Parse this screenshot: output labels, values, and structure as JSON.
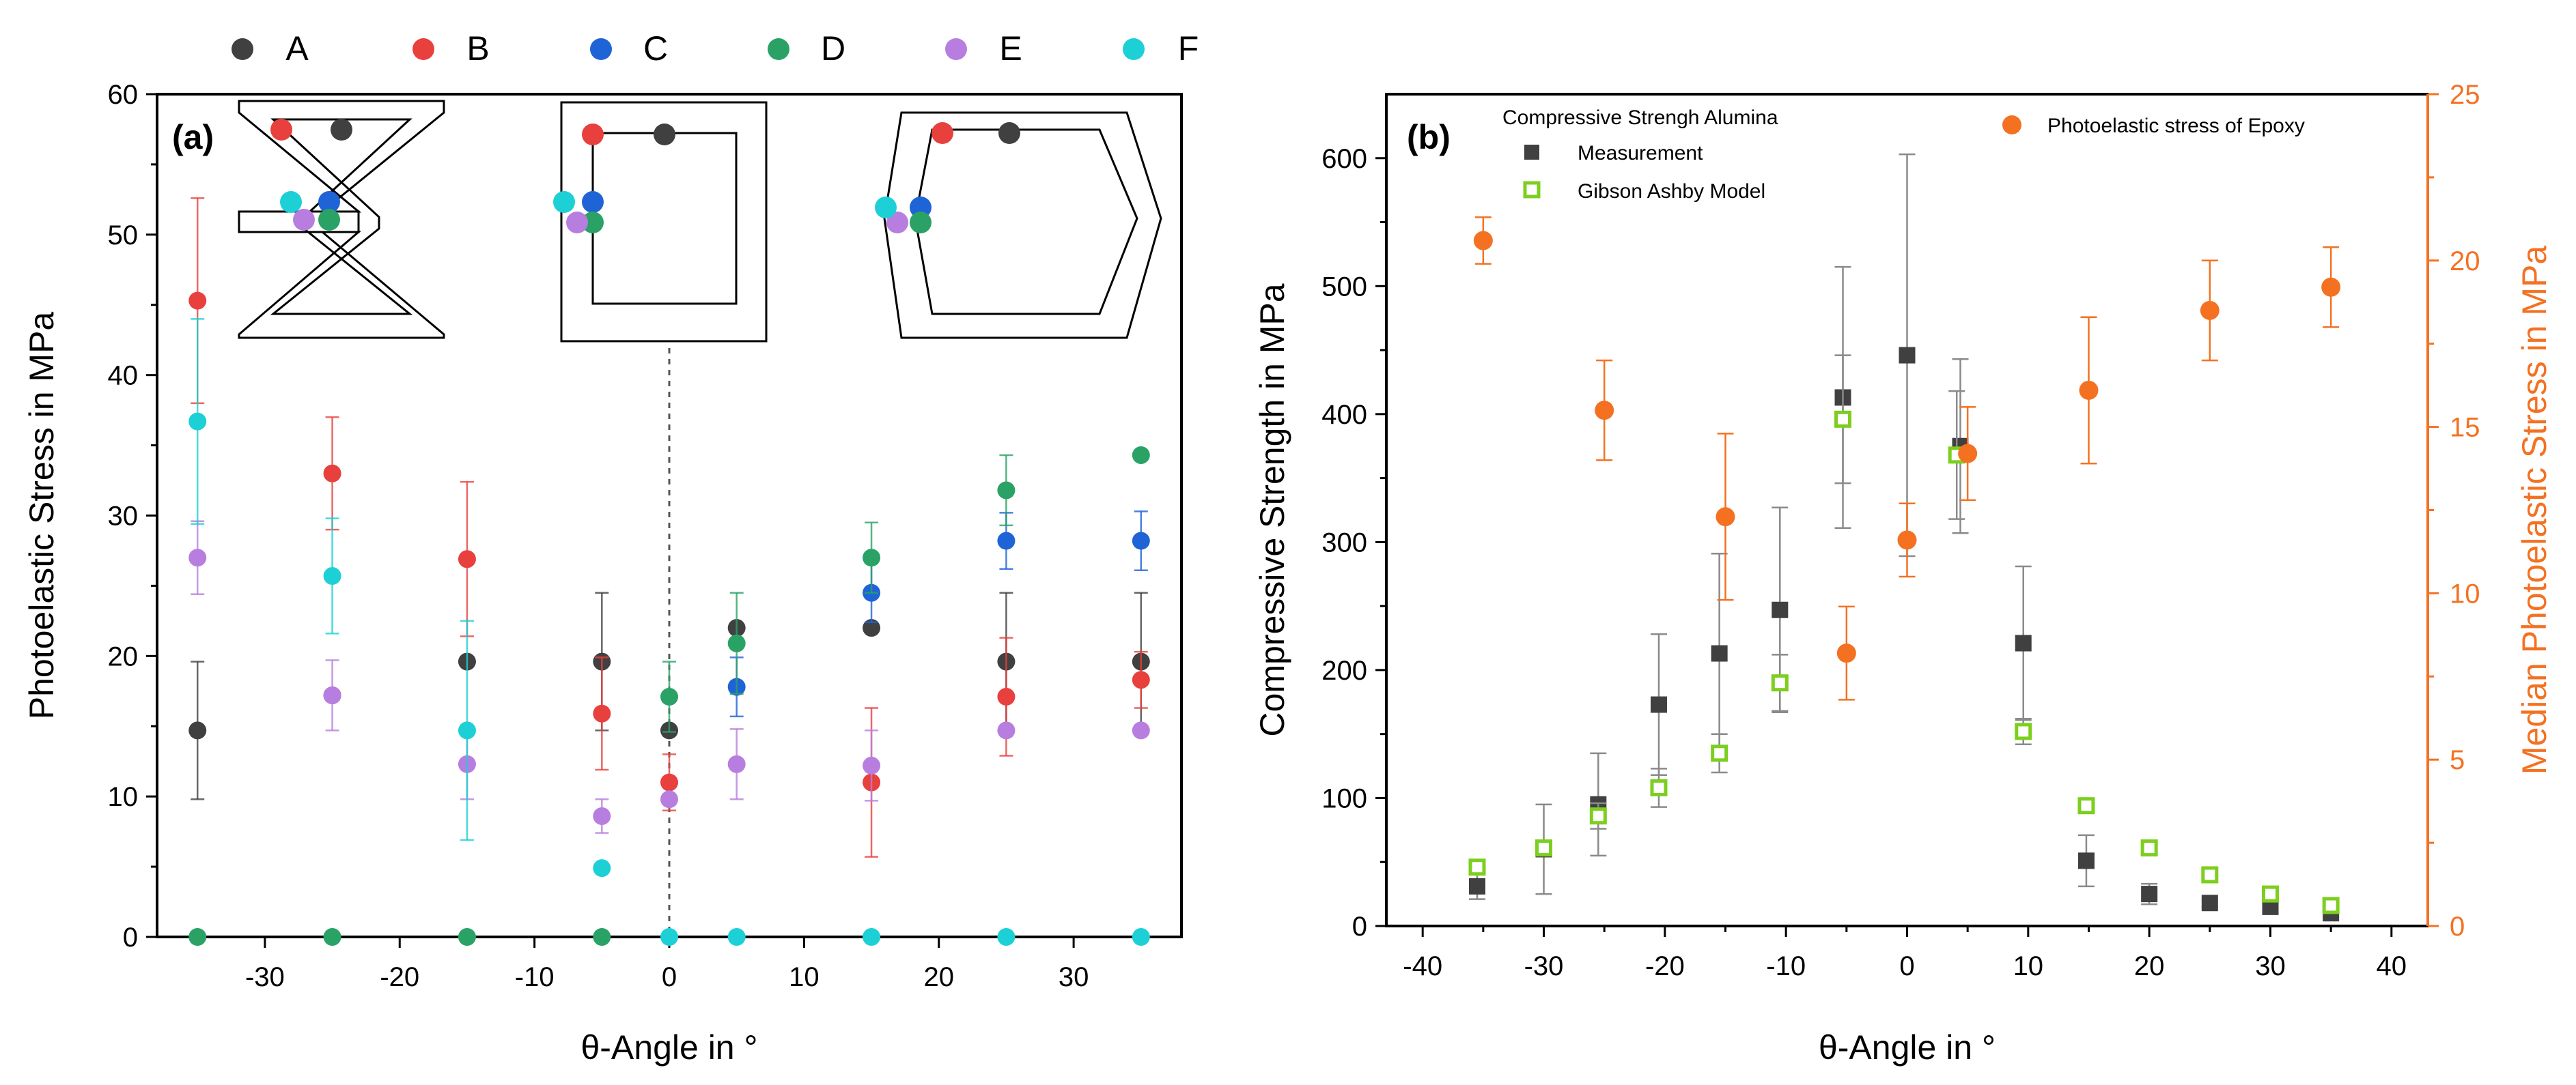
{
  "colors": {
    "A": "#404040",
    "B": "#e8403d",
    "C": "#1f64d6",
    "D": "#2aa266",
    "E": "#b77ee0",
    "F": "#1dd0d6",
    "measurement": "#404040",
    "gibson": "#7ccf1e",
    "epoxy": "#f47122",
    "epoxy_axis": "#f47122"
  },
  "chart_data": [
    {
      "type": "scatter",
      "panel_label": "(a)",
      "xlabel": "θ-Angle in °",
      "ylabel": "Photoelastic Stress in MPa",
      "xlim": [
        -38,
        38
      ],
      "ylim": [
        0,
        60
      ],
      "xticks": [
        -30,
        -20,
        -10,
        0,
        10,
        20,
        30
      ],
      "xtick_labels": [
        "-30",
        "-20",
        "-10",
        "0",
        "10",
        "20",
        "30"
      ],
      "yticks": [
        0,
        10,
        20,
        30,
        40,
        50,
        60
      ],
      "ytick_labels": [
        "0",
        "10",
        "20",
        "30",
        "40",
        "50",
        "60"
      ],
      "legend_position": "top",
      "reference_line_x": 0,
      "series": [
        {
          "name": "A",
          "x": [
            -35,
            -25,
            -15,
            -5,
            0,
            5,
            15,
            25,
            35
          ],
          "y": [
            14.7,
            17.2,
            19.6,
            19.6,
            14.7,
            22.0,
            22.0,
            19.6,
            19.6
          ],
          "err": [
            4.9,
            0,
            0,
            4.9,
            0,
            0,
            0,
            4.9,
            4.9
          ]
        },
        {
          "name": "B",
          "x": [
            -35,
            -25,
            -15,
            -5,
            0,
            15,
            25,
            35
          ],
          "y": [
            45.3,
            33.0,
            26.9,
            15.9,
            11.0,
            11.0,
            17.1,
            18.3
          ],
          "err": [
            7.3,
            4.0,
            5.5,
            4.0,
            2.0,
            5.3,
            4.2,
            2.0
          ]
        },
        {
          "name": "C",
          "x": [
            5,
            15,
            25,
            35
          ],
          "y": [
            17.8,
            24.5,
            28.2,
            28.2
          ],
          "err": [
            2.1,
            2.1,
            2.0,
            2.1
          ]
        },
        {
          "name": "D",
          "x": [
            -35,
            -25,
            -15,
            -5,
            0,
            5,
            15,
            25,
            35
          ],
          "y": [
            0,
            0,
            0,
            0,
            17.1,
            20.9,
            27.0,
            31.8,
            34.3
          ],
          "err": [
            0,
            0,
            0,
            0,
            2.5,
            3.6,
            2.5,
            2.5,
            0
          ]
        },
        {
          "name": "E",
          "x": [
            -35,
            -25,
            -15,
            -5,
            0,
            5,
            15,
            25,
            35
          ],
          "y": [
            27.0,
            17.2,
            12.3,
            8.6,
            9.8,
            12.3,
            12.2,
            14.7,
            14.7
          ],
          "err": [
            2.6,
            2.5,
            2.5,
            1.2,
            0,
            2.5,
            2.5,
            0,
            0
          ]
        },
        {
          "name": "F",
          "x": [
            -35,
            -25,
            -15,
            -5,
            0,
            5,
            15,
            25,
            35
          ],
          "y": [
            36.7,
            25.7,
            14.7,
            4.9,
            0,
            0,
            0,
            0,
            0
          ],
          "err": [
            7.3,
            4.1,
            7.8,
            0,
            0,
            0,
            0,
            0,
            0
          ]
        }
      ],
      "insets": [
        {
          "name": "hourglass-cell",
          "points": [
            "A",
            "B",
            "C",
            "D",
            "E",
            "F"
          ]
        },
        {
          "name": "square-cell",
          "points": [
            "A",
            "B",
            "C",
            "D",
            "E",
            "F"
          ]
        },
        {
          "name": "hexagon-cell",
          "points": [
            "A",
            "B",
            "C",
            "D",
            "E",
            "F"
          ]
        }
      ]
    },
    {
      "type": "scatter",
      "panel_label": "(b)",
      "xlabel": "θ-Angle in °",
      "ylabel": "Compressive Strength in MPa",
      "y2label": "Median Photoelastic Stress in MPa",
      "xlim": [
        -43,
        43
      ],
      "ylim": [
        0,
        650
      ],
      "y2lim": [
        0,
        25
      ],
      "xticks": [
        -40,
        -30,
        -20,
        -10,
        0,
        10,
        20,
        30,
        40
      ],
      "xtick_labels": [
        "-40",
        "-30",
        "-20",
        "-10",
        "0",
        "10",
        "20",
        "30",
        "40"
      ],
      "yticks": [
        0,
        100,
        200,
        300,
        400,
        500,
        600
      ],
      "ytick_labels": [
        "0",
        "100",
        "200",
        "300",
        "400",
        "500",
        "600"
      ],
      "y2ticks": [
        0,
        5,
        10,
        15,
        20,
        25
      ],
      "y2tick_labels": [
        "0",
        "5",
        "10",
        "15",
        "20",
        "25"
      ],
      "legend_title": "Compressive Strengh Alumina",
      "legend_right": "Photoelastic stress of Epoxy",
      "series": [
        {
          "name": "Measurement",
          "axis": "left",
          "marker": "filled-square",
          "x": [
            -35.5,
            -30,
            -25.5,
            -20.5,
            -15.5,
            -10.5,
            -5.3,
            0,
            4.4,
            9.6,
            14.8,
            20,
            25,
            30,
            35
          ],
          "y": [
            31,
            60,
            95,
            173,
            213,
            247,
            413,
            446,
            375,
            221,
            51,
            25,
            18,
            15,
            10
          ],
          "err": [
            10,
            35,
            40,
            55,
            78,
            80,
            102,
            157,
            68,
            60,
            20,
            8,
            3,
            3,
            3
          ]
        },
        {
          "name": "Gibson Ashby Model",
          "axis": "left",
          "marker": "open-square",
          "x": [
            -35.5,
            -30,
            -25.5,
            -20.5,
            -15.5,
            -10.5,
            -5.3,
            4.1,
            9.6,
            14.8,
            20,
            25,
            30,
            35
          ],
          "y": [
            46,
            61,
            86,
            108,
            135,
            190,
            396,
            368,
            152,
            94,
            61,
            40,
            25,
            16
          ],
          "err": [
            0,
            0,
            10,
            15,
            15,
            22,
            50,
            50,
            10,
            0,
            0,
            0,
            0,
            0
          ]
        },
        {
          "name": "Photoelastic stress of Epoxy",
          "axis": "right",
          "marker": "filled-circle",
          "x": [
            -35,
            -25,
            -15,
            -5,
            0,
            5,
            15,
            25,
            35
          ],
          "y": [
            20.6,
            15.5,
            12.3,
            8.2,
            11.6,
            14.2,
            16.1,
            18.5,
            19.2
          ],
          "err": [
            0.7,
            1.5,
            2.5,
            1.4,
            1.1,
            1.4,
            2.2,
            1.5,
            1.2
          ]
        }
      ]
    }
  ]
}
